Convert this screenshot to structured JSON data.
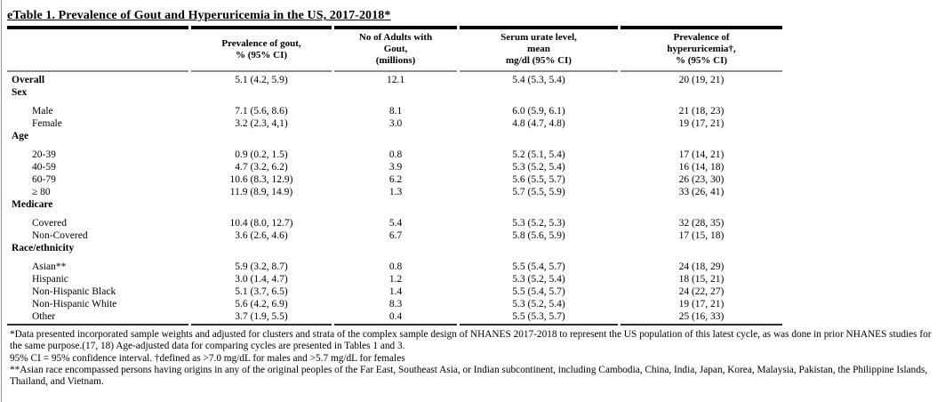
{
  "page": {
    "title": "eTable 1. Prevalence of Gout and Hyperuricemia in the US, 2017-2018*"
  },
  "table": {
    "columns": [
      "",
      "Prevalence of gout,\n% (95% CI)",
      "No of Adults with\nGout,\n(millions)",
      "Serum urate level,\nmean\nmg/dl (95% CI)",
      "Prevalence of\nhyperuricemia†,\n% (95% CI)"
    ],
    "rows": [
      {
        "label": "Overall",
        "bold": true,
        "indent": false,
        "section": false,
        "values": [
          "5.1 (4.2, 5.9)",
          "12.1",
          "5.4 (5.3, 5.4)",
          "20 (19, 21)"
        ]
      },
      {
        "label": "Sex",
        "bold": true,
        "indent": false,
        "section": true,
        "values": [
          "",
          "",
          "",
          ""
        ]
      },
      {
        "label": "Male",
        "bold": false,
        "indent": true,
        "section": false,
        "values": [
          "7.1 (5.6, 8.6)",
          "8.1",
          "6.0 (5.9, 6.1)",
          "21 (18, 23)"
        ]
      },
      {
        "label": "Female",
        "bold": false,
        "indent": true,
        "section": false,
        "values": [
          "3.2 (2.3, 4,1)",
          "3.0",
          "4.8 (4.7, 4.8)",
          "19 (17, 21)"
        ]
      },
      {
        "label": "Age",
        "bold": true,
        "indent": false,
        "section": true,
        "values": [
          "",
          "",
          "",
          ""
        ]
      },
      {
        "label": "20-39",
        "bold": false,
        "indent": true,
        "section": false,
        "values": [
          "0.9 (0.2, 1.5)",
          "0.8",
          "5.2 (5.1, 5.4)",
          "17 (14, 21)"
        ]
      },
      {
        "label": "40-59",
        "bold": false,
        "indent": true,
        "section": false,
        "values": [
          "4.7 (3.2, 6.2)",
          "3.9",
          "5.3 (5.2, 5.4)",
          "16 (14, 18)"
        ]
      },
      {
        "label": "60-79",
        "bold": false,
        "indent": true,
        "section": false,
        "values": [
          "10.6 (8.3, 12.9)",
          "6.2",
          "5.6 (5.5, 5.7)",
          "26 (23, 30)"
        ]
      },
      {
        "label": "≥ 80",
        "bold": false,
        "indent": true,
        "section": false,
        "values": [
          "11.9 (8.9, 14.9)",
          "1.3",
          "5.7 (5.5, 5.9)",
          "33 (26, 41)"
        ]
      },
      {
        "label": "Medicare",
        "bold": true,
        "indent": false,
        "section": true,
        "values": [
          "",
          "",
          "",
          ""
        ]
      },
      {
        "label": "Covered",
        "bold": false,
        "indent": true,
        "section": false,
        "values": [
          "10.4 (8.0, 12.7)",
          "5.4",
          "5.3 (5.2, 5.3)",
          "32 (28, 35)"
        ]
      },
      {
        "label": "Non-Covered",
        "bold": false,
        "indent": true,
        "section": false,
        "values": [
          "3.6 (2.6, 4.6)",
          "6.7",
          "5.8 (5.6, 5.9)",
          "17 (15, 18)"
        ]
      },
      {
        "label": "Race/ethnicity",
        "bold": true,
        "indent": false,
        "section": true,
        "values": [
          "",
          "",
          "",
          ""
        ]
      },
      {
        "label": "Asian**",
        "bold": false,
        "indent": true,
        "section": false,
        "values": [
          "5.9 (3.2, 8.7)",
          "0.8",
          "5.5 (5.4, 5.7)",
          "24 (18, 29)"
        ]
      },
      {
        "label": "Hispanic",
        "bold": false,
        "indent": true,
        "section": false,
        "values": [
          "3.0 (1.4, 4.7)",
          "1.2",
          "5.3 (5.2, 5.4)",
          "18 (15, 21)"
        ]
      },
      {
        "label": "Non-Hispanic Black",
        "bold": false,
        "indent": true,
        "section": false,
        "values": [
          "5.1 (3.7, 6.5)",
          "1.4",
          "5.5 (5.4, 5.7)",
          "24 (22, 27)"
        ]
      },
      {
        "label": "Non-Hispanic White",
        "bold": false,
        "indent": true,
        "section": false,
        "values": [
          "5.6 (4.2, 6.9)",
          "8.3",
          "5.3 (5.2, 5.4)",
          "19 (17, 21)"
        ]
      },
      {
        "label": "Other",
        "bold": false,
        "indent": true,
        "section": false,
        "values": [
          "3.7 (1.9, 5.5)",
          "0.4",
          "5.5 (5.3, 5.7)",
          "25 (16, 33)"
        ]
      }
    ]
  },
  "footnotes": [
    "*Data presented incorporated sample weights and adjusted for clusters and strata of the complex sample design of NHANES 2017-2018 to represent the US population of this latest cycle, as was done in prior NHANES studies for the same purpose.(17, 18) Age-adjusted data for comparing cycles are presented in Tables 1 and 3.",
    "95% CI = 95% confidence interval. †defined as >7.0 mg/dL for males and >5.7 mg/dL for females",
    "**Asian race encompassed persons having origins in any of the original peoples of the Far East, Southeast Asia, or Indian subcontinent, including Cambodia, China, India, Japan, Korea, Malaysia, Pakistan, the Philippine Islands, Thailand, and Vietnam."
  ]
}
